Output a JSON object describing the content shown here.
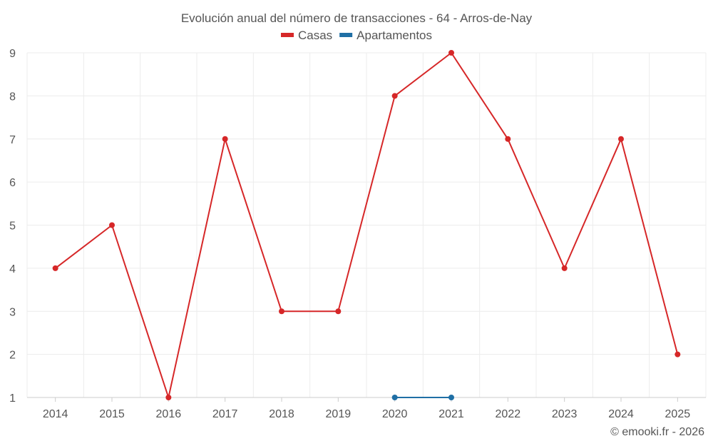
{
  "chart_data": {
    "type": "line",
    "title": "Evolución anual del número de transacciones - 64 - Arros-de-Nay",
    "xlabel": "",
    "ylabel": "",
    "categories": [
      "2014",
      "2015",
      "2016",
      "2017",
      "2018",
      "2019",
      "2020",
      "2021",
      "2022",
      "2023",
      "2024",
      "2025"
    ],
    "ylim": [
      1,
      9
    ],
    "yticks": [
      1,
      2,
      3,
      4,
      5,
      6,
      7,
      8,
      9
    ],
    "grid": true,
    "legend_position": "top-center",
    "series": [
      {
        "name": "Casas",
        "color": "#d62728",
        "values": [
          4,
          5,
          1,
          7,
          3,
          3,
          8,
          9,
          7,
          4,
          7,
          2
        ]
      },
      {
        "name": "Apartamentos",
        "color": "#1f6fa5",
        "values": [
          null,
          null,
          null,
          null,
          null,
          null,
          1,
          1,
          null,
          null,
          null,
          null
        ]
      }
    ]
  },
  "credit": "© emooki.fr - 2026"
}
